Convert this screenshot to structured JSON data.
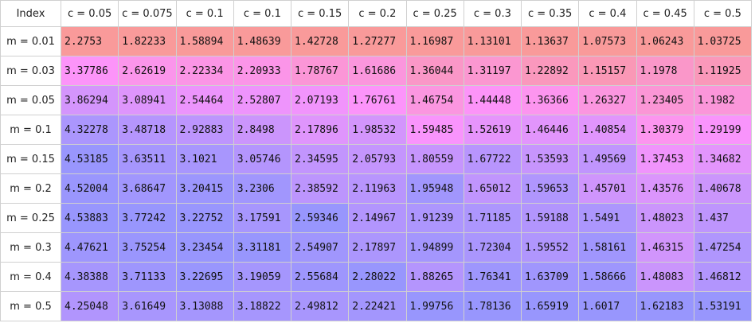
{
  "chart_data": {
    "type": "table",
    "index_header": "Index",
    "columns": [
      "c = 0.05",
      "c = 0.075",
      "c = 0.1",
      "c = 0.1",
      "c = 0.15",
      "c = 0.2",
      "c = 0.25",
      "c = 0.3",
      "c = 0.35",
      "c = 0.4",
      "c = 0.45",
      "c = 0.5"
    ],
    "rows": [
      {
        "label": "m = 0.01",
        "values": [
          "2.2753",
          "1.82233",
          "1.58894",
          "1.48639",
          "1.42728",
          "1.27277",
          "1.16987",
          "1.13101",
          "1.13637",
          "1.07573",
          "1.06243",
          "1.03725"
        ]
      },
      {
        "label": "m = 0.03",
        "values": [
          "3.37786",
          "2.62619",
          "2.22334",
          "2.20933",
          "1.78767",
          "1.61686",
          "1.36044",
          "1.31197",
          "1.22892",
          "1.15157",
          "1.1978",
          "1.11925"
        ]
      },
      {
        "label": "m = 0.05",
        "values": [
          "3.86294",
          "3.08941",
          "2.54464",
          "2.52807",
          "2.07193",
          "1.76761",
          "1.46754",
          "1.44448",
          "1.36366",
          "1.26327",
          "1.23405",
          "1.1982"
        ]
      },
      {
        "label": "m = 0.1",
        "values": [
          "4.32278",
          "3.48718",
          "2.92883",
          "2.8498",
          "2.17896",
          "1.98532",
          "1.59485",
          "1.52619",
          "1.46446",
          "1.40854",
          "1.30379",
          "1.29199"
        ]
      },
      {
        "label": "m = 0.15",
        "values": [
          "4.53185",
          "3.63511",
          "3.1021",
          "3.05746",
          "2.34595",
          "2.05793",
          "1.80559",
          "1.67722",
          "1.53593",
          "1.49569",
          "1.37453",
          "1.34682"
        ]
      },
      {
        "label": "m = 0.2",
        "values": [
          "4.52004",
          "3.68647",
          "3.20415",
          "3.2306",
          "2.38592",
          "2.11963",
          "1.95948",
          "1.65012",
          "1.59653",
          "1.45701",
          "1.43576",
          "1.40678"
        ]
      },
      {
        "label": "m = 0.25",
        "values": [
          "4.53883",
          "3.77242",
          "3.22752",
          "3.17591",
          "2.59346",
          "2.14967",
          "1.91239",
          "1.71185",
          "1.59188",
          "1.5491",
          "1.48023",
          "1.437"
        ]
      },
      {
        "label": "m = 0.3",
        "values": [
          "4.47621",
          "3.75254",
          "3.23454",
          "3.31181",
          "2.54907",
          "2.17897",
          "1.94899",
          "1.72304",
          "1.59552",
          "1.58161",
          "1.46315",
          "1.47254"
        ]
      },
      {
        "label": "m = 0.4",
        "values": [
          "4.38388",
          "3.71133",
          "3.22695",
          "3.19059",
          "2.55684",
          "2.28022",
          "1.88265",
          "1.76341",
          "1.63709",
          "1.58666",
          "1.48083",
          "1.46812"
        ]
      },
      {
        "label": "m = 0.5",
        "values": [
          "4.25048",
          "3.61649",
          "3.13088",
          "3.18822",
          "2.49812",
          "2.22421",
          "1.99756",
          "1.78136",
          "1.65919",
          "1.6017",
          "1.62183",
          "1.53191"
        ]
      }
    ],
    "colorscale": {
      "stops": [
        "#f99a9a",
        "#fc94fc",
        "#9896fd"
      ],
      "mapping": "per-column"
    }
  }
}
